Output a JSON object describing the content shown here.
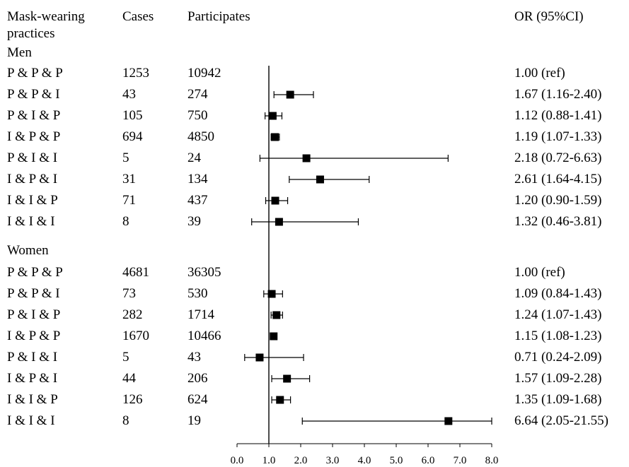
{
  "headers": {
    "practices_line1": "Mask-wearing",
    "practices_line2": "practices",
    "cases": "Cases",
    "participates": "Participates",
    "or": "OR (95%CI)"
  },
  "groups": [
    {
      "label": "Men",
      "rows": [
        {
          "practice": "P & P & P",
          "cases": "1253",
          "participates": "10942",
          "or_text": "1.00 (ref)",
          "or": 1.0,
          "lo": null,
          "hi": null
        },
        {
          "practice": "P & P & I",
          "cases": "43",
          "participates": "274",
          "or_text": "1.67 (1.16-2.40)",
          "or": 1.67,
          "lo": 1.16,
          "hi": 2.4
        },
        {
          "practice": "P & I & P",
          "cases": "105",
          "participates": "750",
          "or_text": "1.12 (0.88-1.41)",
          "or": 1.12,
          "lo": 0.88,
          "hi": 1.41
        },
        {
          "practice": "I & P & P",
          "cases": "694",
          "participates": "4850",
          "or_text": "1.19 (1.07-1.33)",
          "or": 1.19,
          "lo": 1.07,
          "hi": 1.33
        },
        {
          "practice": "P & I & I",
          "cases": "5",
          "participates": "24",
          "or_text": "2.18 (0.72-6.63)",
          "or": 2.18,
          "lo": 0.72,
          "hi": 6.63
        },
        {
          "practice": "I & P & I",
          "cases": "31",
          "participates": "134",
          "or_text": "2.61 (1.64-4.15)",
          "or": 2.61,
          "lo": 1.64,
          "hi": 4.15
        },
        {
          "practice": "I & I & P",
          "cases": "71",
          "participates": "437",
          "or_text": "1.20 (0.90-1.59)",
          "or": 1.2,
          "lo": 0.9,
          "hi": 1.59
        },
        {
          "practice": "I & I & I",
          "cases": "8",
          "participates": "39",
          "or_text": "1.32 (0.46-3.81)",
          "or": 1.32,
          "lo": 0.46,
          "hi": 3.81
        }
      ]
    },
    {
      "label": "Women",
      "rows": [
        {
          "practice": "P & P & P",
          "cases": "4681",
          "participates": "36305",
          "or_text": "1.00 (ref)",
          "or": 1.0,
          "lo": null,
          "hi": null
        },
        {
          "practice": "P & P & I",
          "cases": "73",
          "participates": "530",
          "or_text": "1.09 (0.84-1.43)",
          "or": 1.09,
          "lo": 0.84,
          "hi": 1.43
        },
        {
          "practice": "P & I & P",
          "cases": "282",
          "participates": "1714",
          "or_text": "1.24 (1.07-1.43)",
          "or": 1.24,
          "lo": 1.07,
          "hi": 1.43
        },
        {
          "practice": "I & P & P",
          "cases": "1670",
          "participates": "10466",
          "or_text": "1.15 (1.08-1.23)",
          "or": 1.15,
          "lo": 1.08,
          "hi": 1.23
        },
        {
          "practice": "P & I & I",
          "cases": "5",
          "participates": "43",
          "or_text": "0.71 (0.24-2.09)",
          "or": 0.71,
          "lo": 0.24,
          "hi": 2.09
        },
        {
          "practice": "I & P & I",
          "cases": "44",
          "participates": "206",
          "or_text": "1.57 (1.09-2.28)",
          "or": 1.57,
          "lo": 1.09,
          "hi": 2.28
        },
        {
          "practice": "I & I & P",
          "cases": "126",
          "participates": "624",
          "or_text": "1.35 (1.09-1.68)",
          "or": 1.35,
          "lo": 1.09,
          "hi": 1.68
        },
        {
          "practice": "I & I & I",
          "cases": "8",
          "participates": "19",
          "or_text": "6.64 (2.05-21.55)",
          "or": 6.64,
          "lo": 2.05,
          "hi": 21.55
        }
      ]
    }
  ],
  "chart_data": {
    "type": "scatter",
    "x_ticks": [
      "0.0",
      "1.0",
      "2.0",
      "3.0",
      "4.0",
      "5.0",
      "6.0",
      "7.0",
      "8.0"
    ],
    "xlim": [
      0,
      8
    ],
    "reference_line": 1.0,
    "grid": false
  }
}
